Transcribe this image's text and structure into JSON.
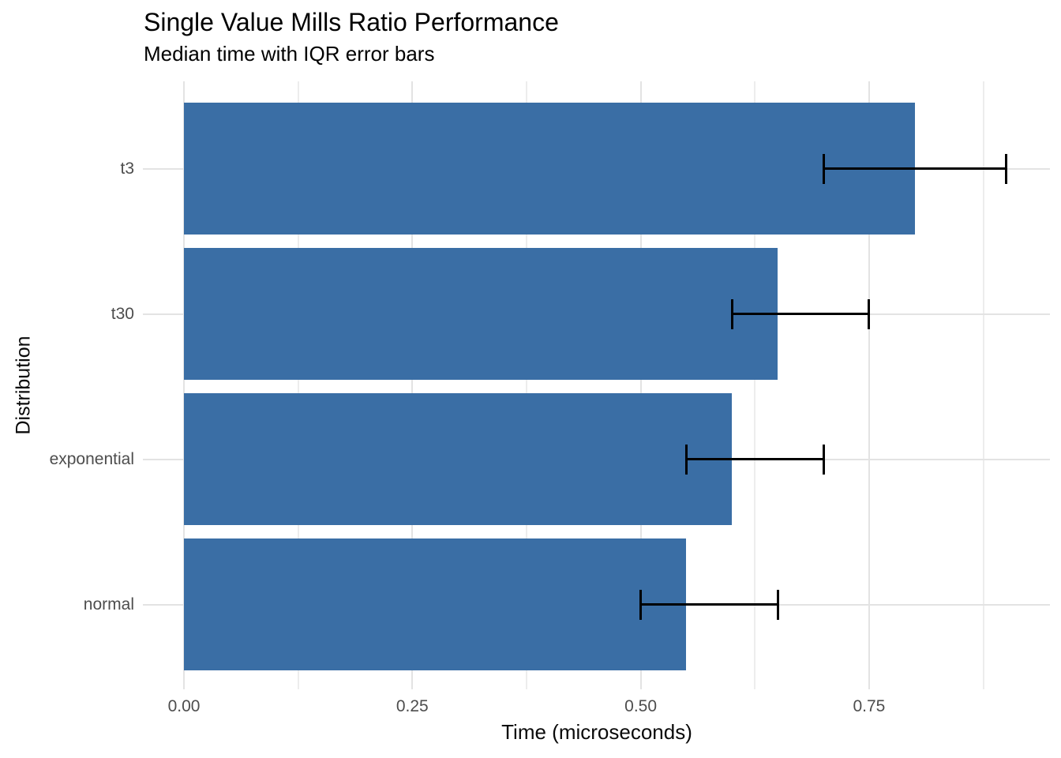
{
  "chart_data": {
    "type": "bar",
    "orientation": "horizontal",
    "title": "Single Value Mills Ratio Performance",
    "subtitle": "Median time with IQR error bars",
    "xlabel": "Time (microseconds)",
    "ylabel": "Distribution",
    "categories": [
      "t3",
      "t30",
      "exponential",
      "normal"
    ],
    "values": [
      0.8,
      0.65,
      0.6,
      0.55
    ],
    "error_bars": {
      "kind": "IQR",
      "lower": [
        0.7,
        0.6,
        0.55,
        0.5
      ],
      "upper": [
        0.9,
        0.75,
        0.7,
        0.65
      ]
    },
    "x_tick_values": [
      0,
      0.25,
      0.5,
      0.75
    ],
    "x_tick_labels": [
      "0.00",
      "0.25",
      "0.50",
      "0.75"
    ],
    "x_minor_tick_values": [
      0.125,
      0.375,
      0.625,
      0.875
    ],
    "xlim": [
      0,
      0.948
    ],
    "grid": true,
    "legend": false,
    "colors": {
      "bar_fill": "#3a6ea5",
      "error_bar": "#000000",
      "grid_major": "#e3e3e3",
      "grid_minor": "#ededed",
      "tick_label": "#4d4d4d",
      "axis_title": "#0a0a0a",
      "title_text": "#000000"
    }
  }
}
